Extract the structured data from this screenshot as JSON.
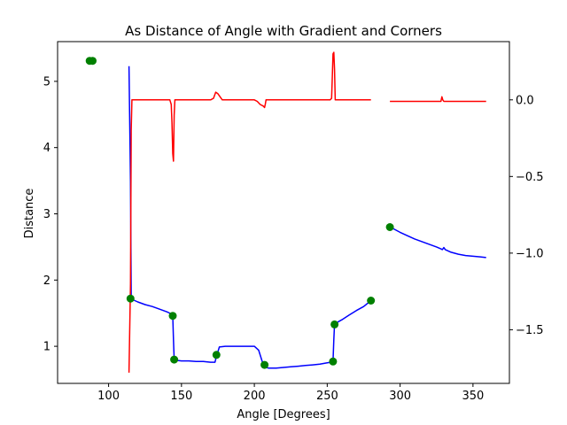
{
  "chart_data": {
    "type": "line",
    "title": "As Distance of Angle with Gradient and Corners",
    "xlabel": "Angle [Degrees]",
    "ylabel": "Distance",
    "xlim": [
      65,
      375
    ],
    "ylim": [
      0.44,
      5.6
    ],
    "y2lim": [
      -1.85,
      0.38
    ],
    "grid": false,
    "legend": "none",
    "x_ticks": [
      100,
      150,
      200,
      250,
      300,
      350
    ],
    "y_ticks": [
      1,
      2,
      3,
      4,
      5
    ],
    "y2_ticks": [
      0.0,
      -0.5,
      -1.0,
      -1.5
    ],
    "x_tick_labels": [
      "100",
      "150",
      "200",
      "250",
      "300",
      "350"
    ],
    "y_tick_labels": [
      "1",
      "2",
      "3",
      "4",
      "5"
    ],
    "y2_tick_labels": [
      "0.0",
      "−0.5",
      "−1.0",
      "−1.5"
    ],
    "colors": {
      "distance": "#0000ff",
      "gradient": "#ff0000",
      "corners": "#008000"
    },
    "series": [
      {
        "axis": "left",
        "color": "#0000ff",
        "segments": [
          {
            "x": [
              114,
              115,
              115.5,
              116,
              120,
              125,
              130,
              135,
              140,
              143,
              144,
              144.5,
              145,
              145.5,
              150,
              155,
              160,
              165,
              170,
              173,
              174,
              175,
              176,
              180,
              185,
              190,
              195,
              200,
              203,
              205,
              206,
              207,
              208,
              210,
              215,
              220,
              225,
              230,
              235,
              240,
              245,
              250,
              253,
              254,
              254.5,
              255,
              256,
              260,
              265,
              270,
              275,
              280
            ],
            "y": [
              5.23,
              3.5,
              1.72,
              1.71,
              1.67,
              1.63,
              1.6,
              1.56,
              1.52,
              1.49,
              1.46,
              1.1,
              0.8,
              0.79,
              0.78,
              0.78,
              0.77,
              0.77,
              0.76,
              0.76,
              0.85,
              0.92,
              0.99,
              1.0,
              1.0,
              1.0,
              1.0,
              1.0,
              0.94,
              0.8,
              0.73,
              0.72,
              0.68,
              0.67,
              0.67,
              0.68,
              0.69,
              0.7,
              0.71,
              0.72,
              0.73,
              0.75,
              0.76,
              0.77,
              1.1,
              1.33,
              1.35,
              1.4,
              1.47,
              1.54,
              1.6,
              1.69
            ]
          },
          {
            "x": [
              293,
              295,
              300,
              305,
              310,
              315,
              320,
              325,
              328,
              329,
              330,
              331,
              335,
              340,
              345,
              350,
              355,
              359
            ],
            "y": [
              2.8,
              2.78,
              2.72,
              2.67,
              2.62,
              2.58,
              2.54,
              2.5,
              2.47,
              2.46,
              2.49,
              2.46,
              2.42,
              2.39,
              2.37,
              2.36,
              2.35,
              2.34
            ]
          }
        ]
      },
      {
        "axis": "right",
        "color": "#ff0000",
        "segments": [
          {
            "x": [
              114,
              115,
              115.5,
              116,
              120,
              125,
              130,
              135,
              140,
              142,
              143,
              143.5,
              144,
              144.5,
              145,
              145.5,
              146,
              150,
              155,
              160,
              165,
              170,
              172,
              173.5,
              175,
              176.5,
              178,
              180,
              185,
              190,
              195,
              200,
              202,
              204,
              206,
              207,
              207.5,
              208,
              210,
              215,
              220,
              225,
              230,
              235,
              240,
              245,
              250,
              252,
              253,
              253.5,
              254,
              254.5,
              255,
              255.5,
              256,
              260,
              265,
              270,
              275,
              280
            ],
            "y": [
              -1.78,
              -1.2,
              -0.2,
              0.0,
              0.0,
              0.0,
              0.0,
              0.0,
              0.0,
              0.0,
              -0.03,
              -0.15,
              -0.35,
              -0.4,
              -0.1,
              0.0,
              0.0,
              0.0,
              0.0,
              0.0,
              0.0,
              0.0,
              0.01,
              0.05,
              0.04,
              0.02,
              0.0,
              0.0,
              0.0,
              0.0,
              0.0,
              0.0,
              -0.01,
              -0.03,
              -0.04,
              -0.05,
              -0.03,
              0.0,
              0.0,
              0.0,
              0.0,
              0.0,
              0.0,
              0.0,
              0.0,
              0.0,
              0.0,
              0.0,
              0.01,
              0.15,
              0.3,
              0.31,
              0.2,
              0.0,
              0.0,
              0.0,
              0.0,
              0.0,
              0.0,
              0.0
            ]
          },
          {
            "x": [
              293,
              295,
              300,
              305,
              310,
              315,
              320,
              325,
              328,
              328.7,
              329.3,
              330,
              335,
              340,
              345,
              350,
              355,
              359
            ],
            "y": [
              -0.01,
              -0.01,
              -0.01,
              -0.01,
              -0.01,
              -0.01,
              -0.01,
              -0.01,
              -0.01,
              0.02,
              0.0,
              -0.01,
              -0.01,
              -0.01,
              -0.01,
              -0.01,
              -0.01,
              -0.01
            ]
          }
        ]
      }
    ],
    "corners": {
      "x": [
        87,
        89,
        115,
        144,
        145,
        174,
        207,
        254,
        255,
        280,
        293
      ],
      "y": [
        5.31,
        5.31,
        1.72,
        1.46,
        0.8,
        0.87,
        0.72,
        0.77,
        1.33,
        1.69,
        2.8
      ]
    }
  }
}
